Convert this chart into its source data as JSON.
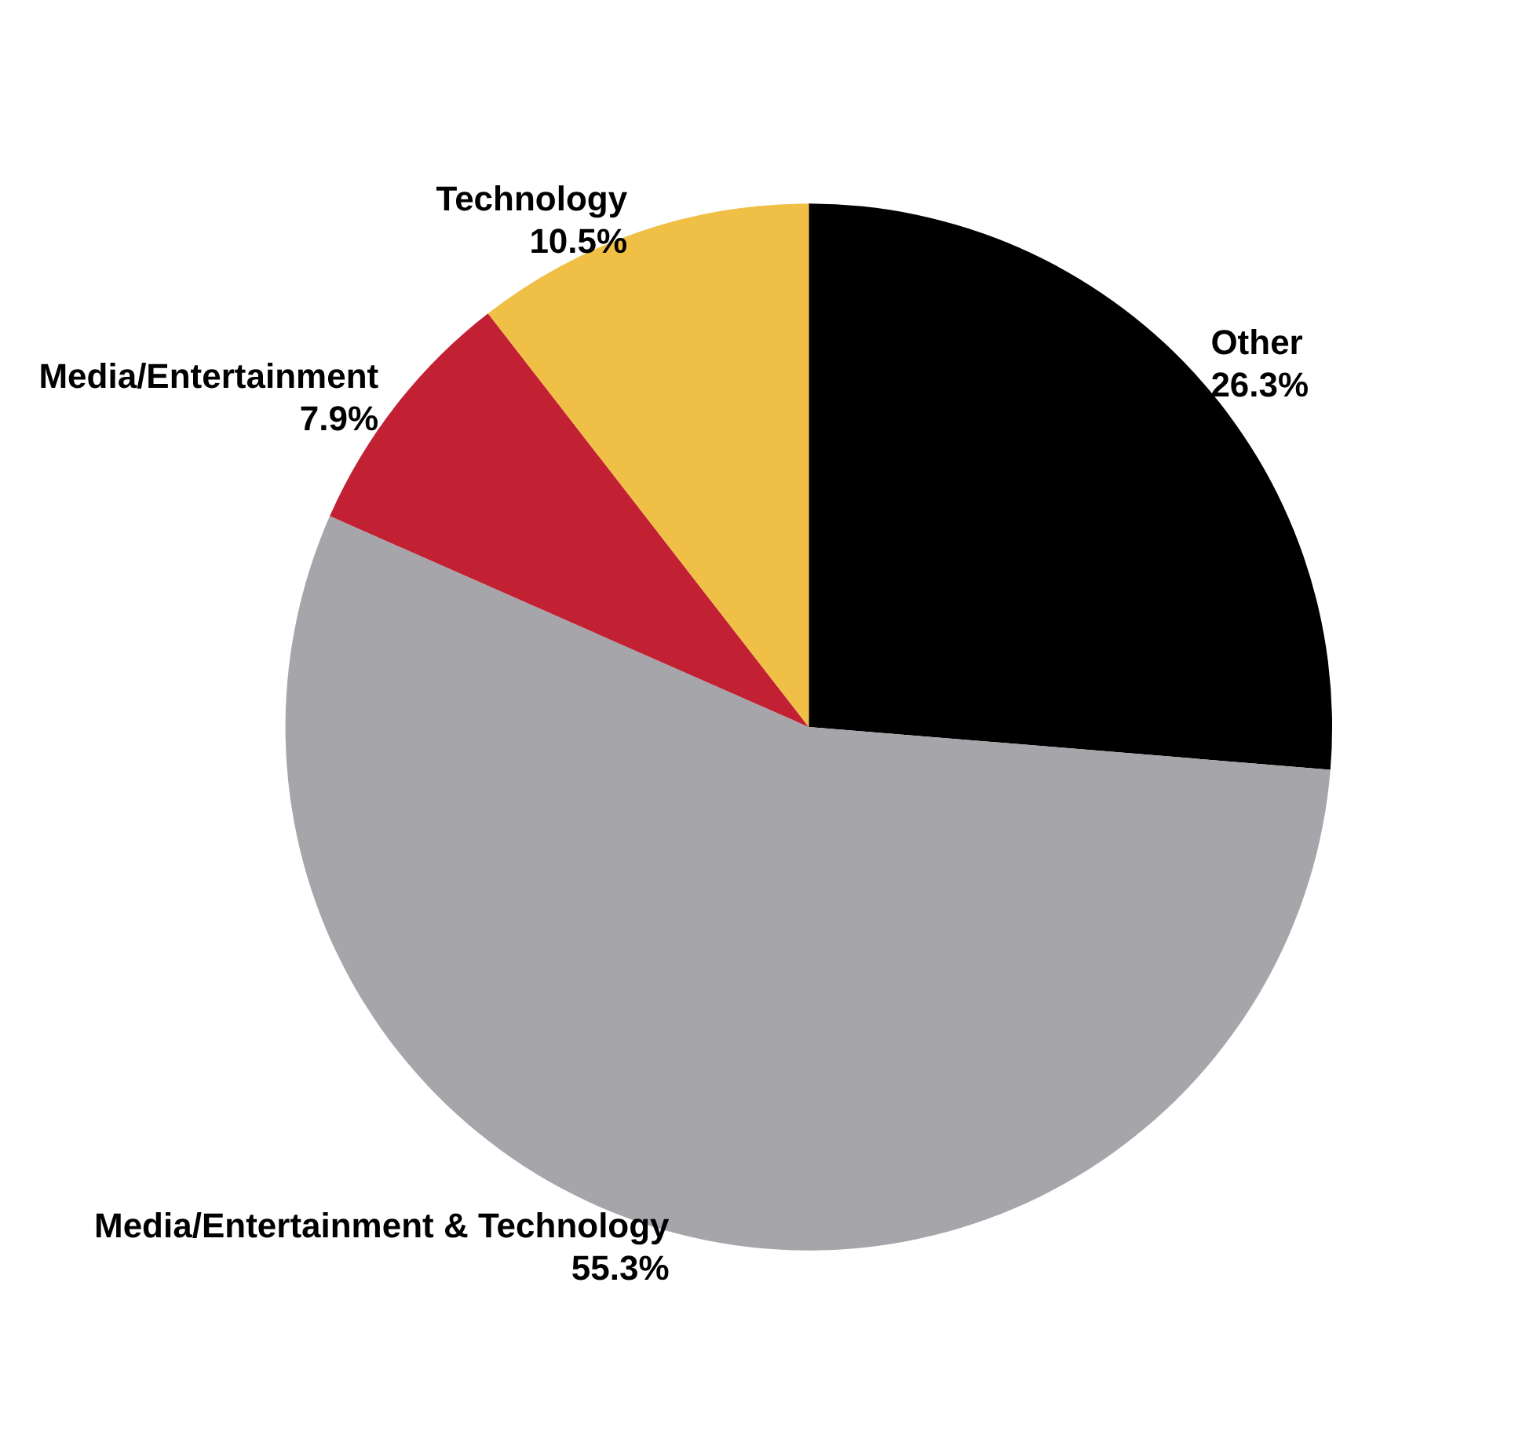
{
  "chart_data": {
    "type": "pie",
    "categories": [
      "Other",
      "Media/Entertainment & Technology",
      "Media/Entertainment",
      "Technology"
    ],
    "values": [
      26.3,
      55.3,
      7.9,
      10.5
    ],
    "value_labels": [
      "26.3%",
      "55.3%",
      "7.9%",
      "10.5%"
    ],
    "colors": [
      "#000000",
      "#a5a5aa",
      "#c22033",
      "#f0bf45"
    ],
    "legend": false
  }
}
